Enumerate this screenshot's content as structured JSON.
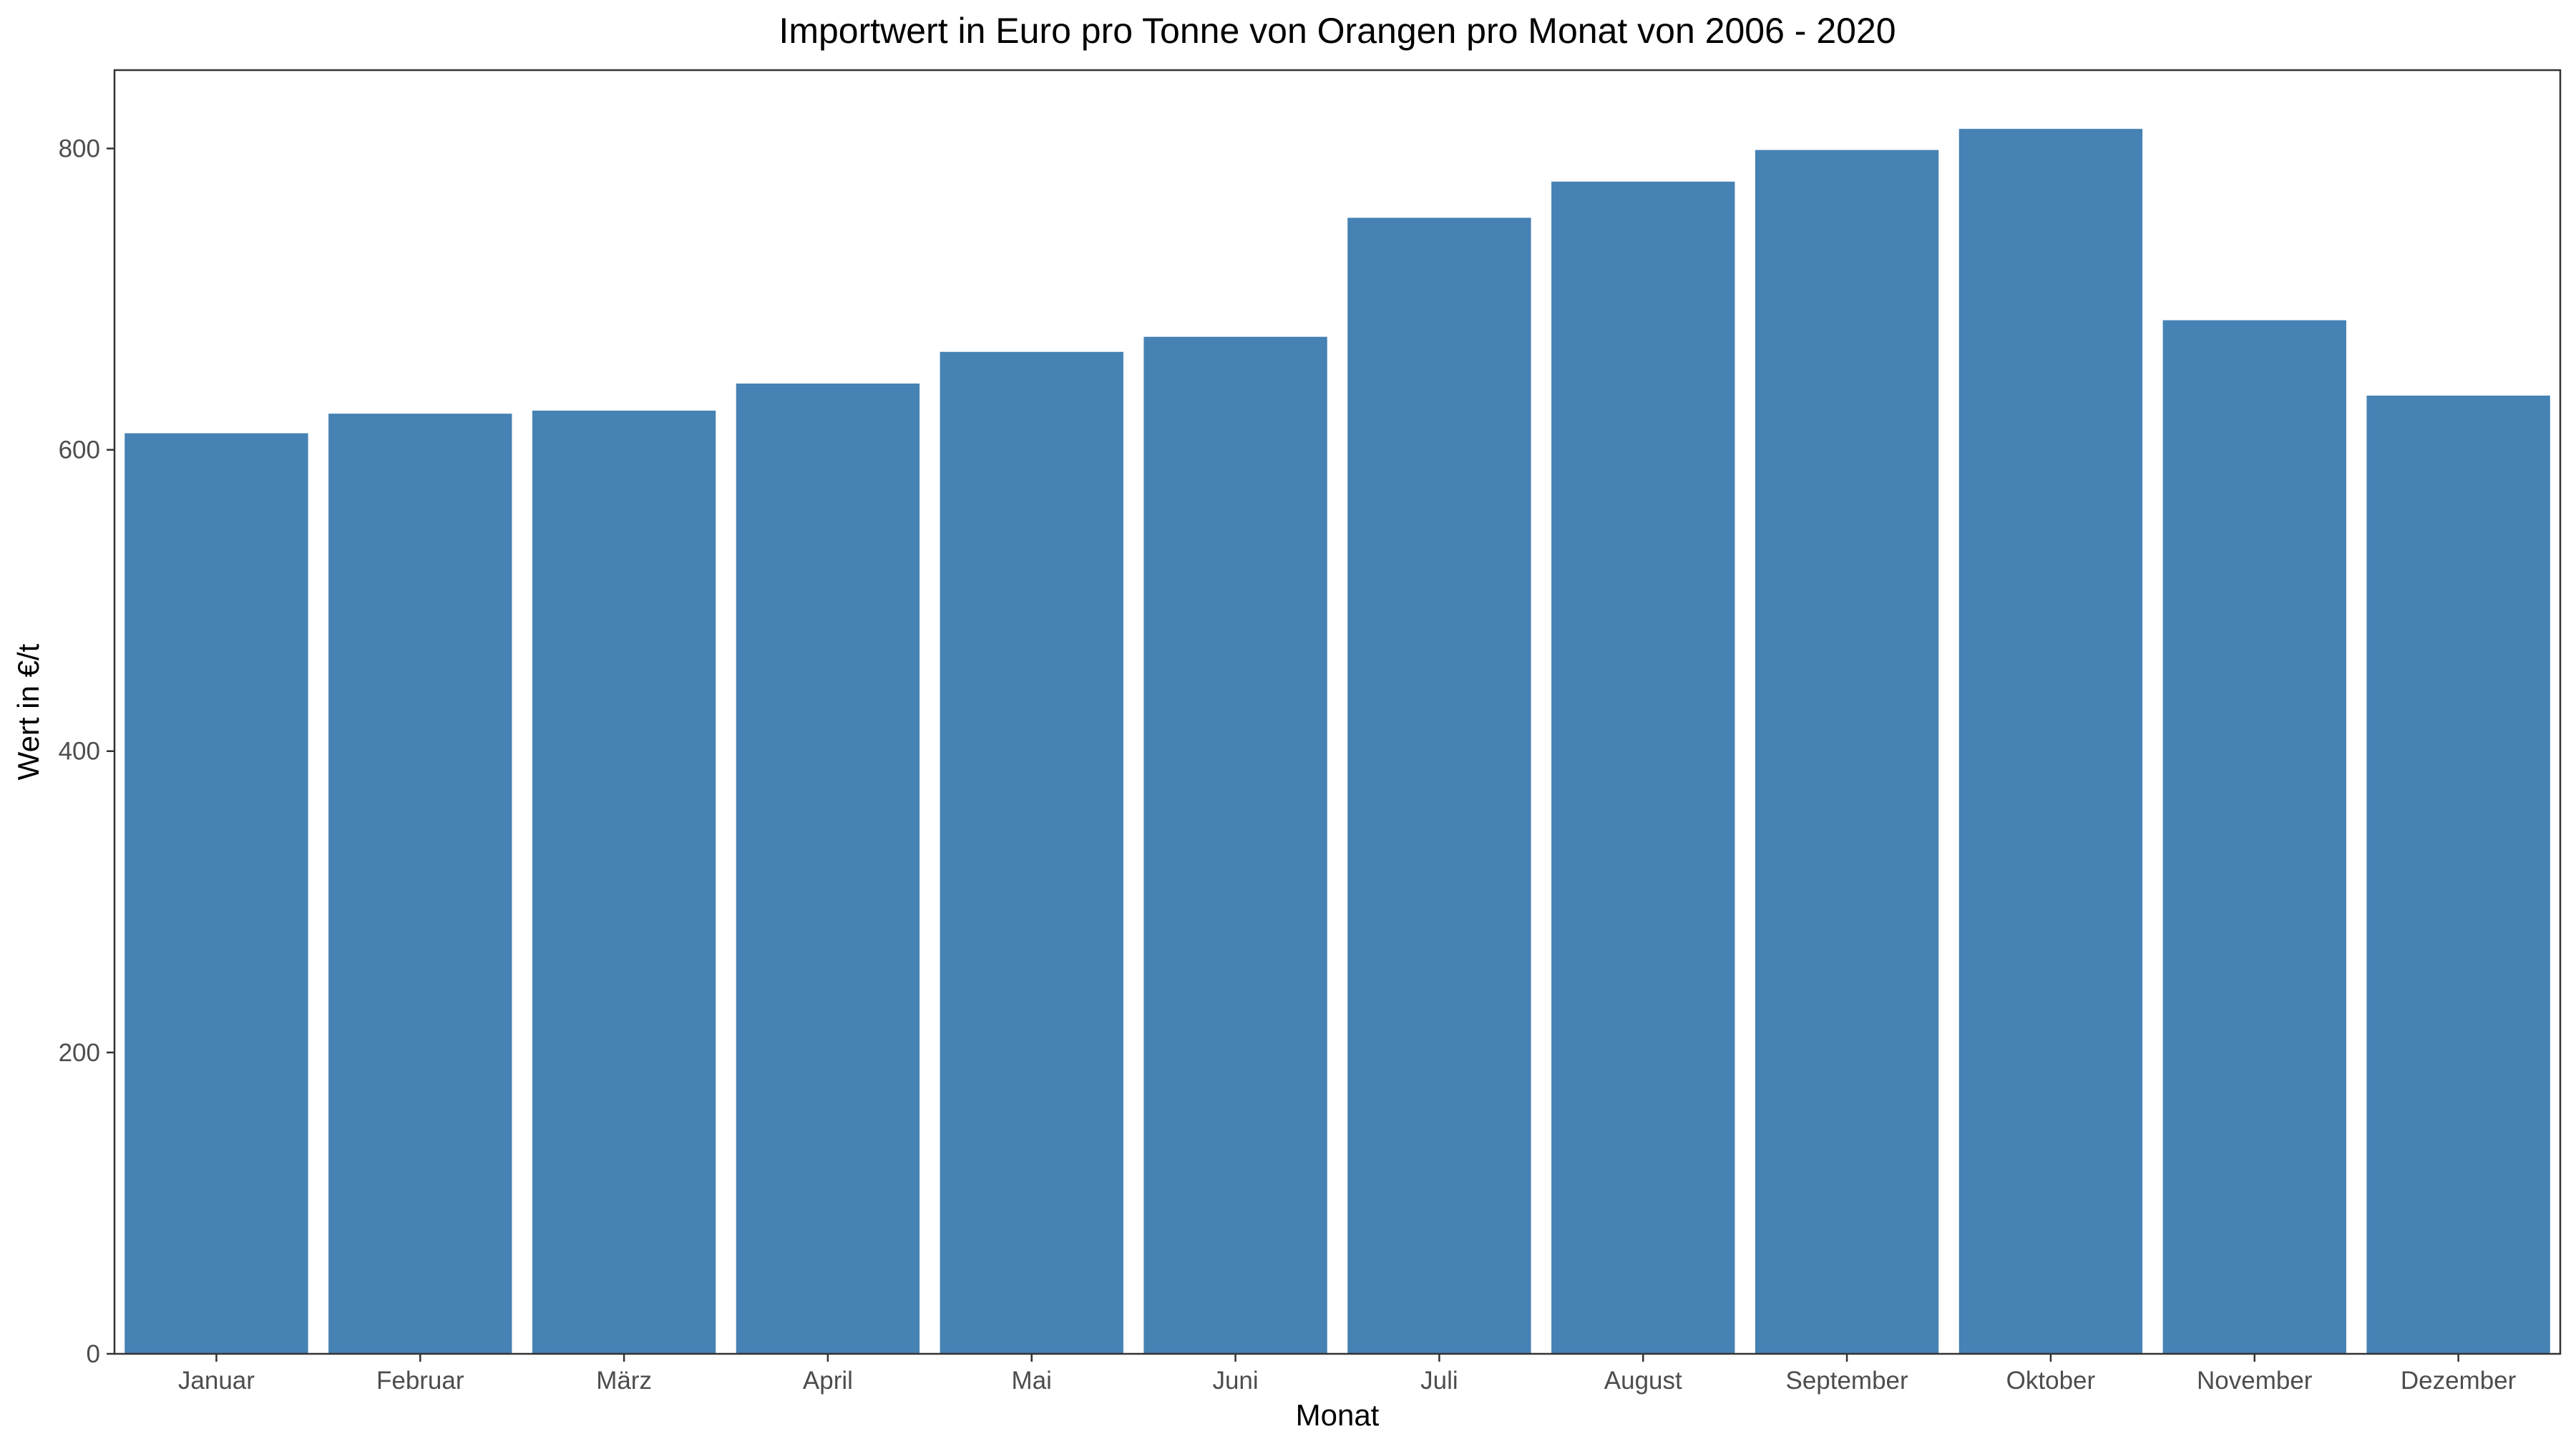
{
  "chart_data": {
    "type": "bar",
    "title": "Importwert in Euro pro Tonne von Orangen pro Monat von 2006 - 2020",
    "xlabel": "Monat",
    "ylabel": "Wert in €/t",
    "categories": [
      "Januar",
      "Februar",
      "März",
      "April",
      "Mai",
      "Juni",
      "Juli",
      "August",
      "September",
      "Oktober",
      "November",
      "Dezember"
    ],
    "values": [
      611,
      624,
      626,
      644,
      665,
      675,
      754,
      778,
      799,
      813,
      686,
      636
    ],
    "ylim": [
      0,
      852
    ],
    "yticks": [
      0,
      200,
      400,
      600,
      800
    ],
    "grid": false,
    "legend": "none",
    "bar_color": "#4682B4"
  }
}
